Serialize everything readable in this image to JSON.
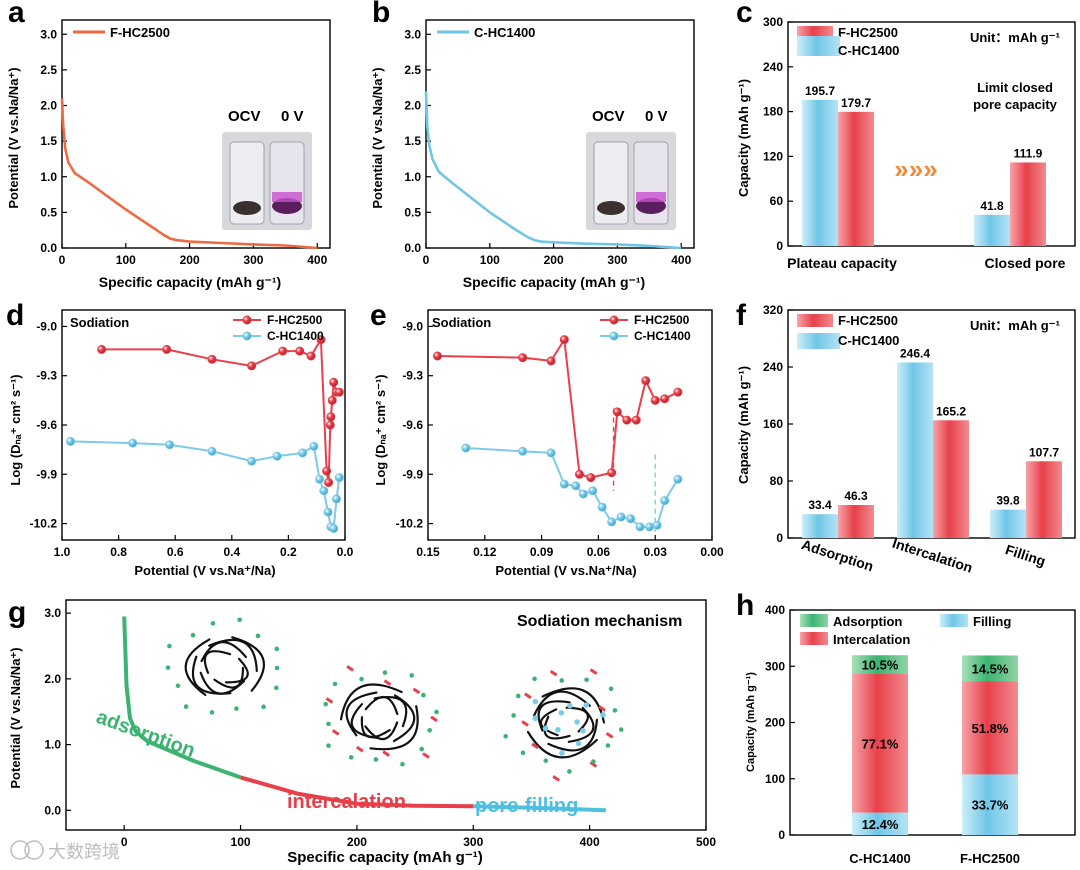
{
  "colors": {
    "red": "#e8404a",
    "blue": "#7ccbe9",
    "orange_line": "#ef6a43",
    "cyan_line": "#6fc6e6",
    "green": "#3cb371",
    "axis": "#000000"
  },
  "panels": {
    "a": {
      "letter": "a",
      "legend": "F-HC2500",
      "vial_left": "OCV",
      "vial_right": "0 V",
      "xlabel": "Specific capacity (mAh g⁻¹)",
      "ylabel": "Potential (V vs.Na/Na⁺)",
      "xticks": [
        "0",
        "100",
        "200",
        "300",
        "400"
      ],
      "yticks": [
        "0.0",
        "0.5",
        "1.0",
        "1.5",
        "2.0",
        "2.5",
        "3.0"
      ]
    },
    "b": {
      "letter": "b",
      "legend": "C-HC1400",
      "vial_left": "OCV",
      "vial_right": "0 V",
      "xlabel": "Specific capacity (mAh g⁻¹)",
      "ylabel": "Potential (V vs.Na/Na⁺)",
      "xticks": [
        "0",
        "100",
        "200",
        "300",
        "400"
      ],
      "yticks": [
        "0.0",
        "0.5",
        "1.0",
        "1.5",
        "2.0",
        "2.5",
        "3.0"
      ]
    },
    "c": {
      "letter": "c",
      "unit": "Unit：mAh g⁻¹",
      "note_line1": "Limit closed",
      "note_line2": "pore capacity",
      "ylabel": "Capacity (mAh g⁻¹)",
      "yticks": [
        "0",
        "60",
        "120",
        "180",
        "240",
        "300"
      ],
      "arrows": "»»»"
    },
    "d": {
      "letter": "d",
      "title": "Sodiation",
      "xlabel": "Potential (V vs.Na⁺/Na)",
      "ylabel": "Log (Dₙₐ⁺ cm² s⁻¹)",
      "xticks": [
        "1.0",
        "0.8",
        "0.6",
        "0.4",
        "0.2",
        "0.0"
      ],
      "yticks": [
        "-9.0",
        "-9.3",
        "-9.6",
        "-9.9",
        "-10.2"
      ]
    },
    "e": {
      "letter": "e",
      "title": "Sodiation",
      "xlabel": "Potential (V vs.Na⁺/Na)",
      "ylabel": "Log (Dₙₐ⁺ cm² s⁻¹)",
      "xticks": [
        "0.15",
        "0.12",
        "0.09",
        "0.06",
        "0.03",
        "0.00"
      ],
      "yticks": [
        "-9.0",
        "-9.3",
        "-9.6",
        "-9.9",
        "-10.2"
      ]
    },
    "f": {
      "letter": "f",
      "unit": "Unit：mAh g⁻¹",
      "ylabel": "Capacity (mAh g⁻¹)",
      "yticks": [
        "0",
        "80",
        "160",
        "240",
        "320"
      ]
    },
    "g": {
      "letter": "g",
      "title": "Sodiation  mechanism",
      "label_adsorption": "adsorption",
      "label_intercalation": "intercalation",
      "label_filling": "pore-filling",
      "xlabel": "Specific capacity (mAh g⁻¹)",
      "ylabel": "Potential (V vs.Na/Na⁺)",
      "xticks": [
        "0",
        "100",
        "200",
        "300",
        "400",
        "500"
      ],
      "yticks": [
        "0.0",
        "1.0",
        "2.0",
        "3.0"
      ]
    },
    "h": {
      "letter": "h",
      "ylabel": "Capacity (mAh g⁻¹)",
      "yticks": [
        "0",
        "100",
        "200",
        "300",
        "400"
      ],
      "legend_adsorption": "Adsorption",
      "legend_filling": "Filling",
      "legend_intercalation": "Intercalation"
    }
  },
  "watermark": "大数跨境",
  "chart_data": [
    {
      "id": "a",
      "type": "line",
      "series": [
        {
          "name": "F-HC2500",
          "x": [
            0,
            2,
            5,
            10,
            20,
            40,
            60,
            80,
            100,
            120,
            140,
            160,
            170,
            180,
            200,
            250,
            300,
            350,
            400
          ],
          "y": [
            2.1,
            1.7,
            1.4,
            1.2,
            1.05,
            0.93,
            0.8,
            0.67,
            0.54,
            0.42,
            0.3,
            0.18,
            0.13,
            0.11,
            0.09,
            0.07,
            0.05,
            0.035,
            0.0
          ]
        }
      ],
      "xlim": [
        0,
        420
      ],
      "ylim": [
        0,
        3.2
      ]
    },
    {
      "id": "b",
      "type": "line",
      "series": [
        {
          "name": "C-HC1400",
          "x": [
            0,
            2,
            5,
            10,
            20,
            40,
            60,
            80,
            100,
            120,
            140,
            160,
            170,
            180,
            200,
            250,
            300,
            350,
            400
          ],
          "y": [
            2.2,
            1.7,
            1.45,
            1.25,
            1.07,
            0.92,
            0.78,
            0.64,
            0.5,
            0.38,
            0.26,
            0.15,
            0.11,
            0.09,
            0.08,
            0.06,
            0.05,
            0.03,
            0.0
          ]
        }
      ],
      "xlim": [
        0,
        420
      ],
      "ylim": [
        0,
        3.2
      ]
    },
    {
      "id": "c",
      "type": "bar",
      "categories": [
        "Plateau capacity",
        "Closed pore"
      ],
      "series": [
        {
          "name": "F-HC2500",
          "values": [
            179.7,
            111.9
          ]
        },
        {
          "name": "C-HC1400",
          "values": [
            195.7,
            41.8
          ]
        }
      ],
      "ylim": [
        0,
        300
      ]
    },
    {
      "id": "d",
      "type": "scatter",
      "xlim": [
        1.0,
        0.0
      ],
      "ylim": [
        -10.3,
        -8.9
      ],
      "series": [
        {
          "name": "F-HC2500",
          "x": [
            0.86,
            0.63,
            0.47,
            0.33,
            0.22,
            0.16,
            0.12,
            0.085,
            0.065,
            0.058,
            0.052,
            0.05,
            0.045,
            0.04,
            0.03,
            0.02
          ],
          "y": [
            -9.14,
            -9.14,
            -9.2,
            -9.24,
            -9.15,
            -9.15,
            -9.18,
            -9.08,
            -9.88,
            -9.95,
            -9.6,
            -9.55,
            -9.45,
            -9.34,
            -9.4,
            -9.4
          ]
        },
        {
          "name": "C-HC1400",
          "x": [
            0.97,
            0.75,
            0.62,
            0.47,
            0.33,
            0.24,
            0.15,
            0.11,
            0.09,
            0.075,
            0.06,
            0.05,
            0.04,
            0.03,
            0.02
          ],
          "y": [
            -9.7,
            -9.71,
            -9.72,
            -9.76,
            -9.82,
            -9.79,
            -9.77,
            -9.73,
            -9.93,
            -10.0,
            -10.13,
            -10.22,
            -10.23,
            -10.05,
            -9.92
          ]
        }
      ]
    },
    {
      "id": "e",
      "type": "scatter",
      "xlim": [
        0.15,
        0.0
      ],
      "ylim": [
        -10.3,
        -8.9
      ],
      "series": [
        {
          "name": "F-HC2500",
          "x": [
            0.145,
            0.1,
            0.085,
            0.078,
            0.07,
            0.064,
            0.053,
            0.05,
            0.045,
            0.04,
            0.035,
            0.03,
            0.025,
            0.018
          ],
          "y": [
            -9.18,
            -9.19,
            -9.21,
            -9.08,
            -9.9,
            -9.92,
            -9.89,
            -9.52,
            -9.57,
            -9.57,
            -9.33,
            -9.45,
            -9.44,
            -9.4
          ]
        },
        {
          "name": "C-HC1400",
          "x": [
            0.13,
            0.1,
            0.085,
            0.078,
            0.072,
            0.068,
            0.063,
            0.058,
            0.053,
            0.048,
            0.043,
            0.038,
            0.033,
            0.029,
            0.025,
            0.018
          ],
          "y": [
            -9.74,
            -9.76,
            -9.77,
            -9.96,
            -9.97,
            -10.02,
            -10.0,
            -10.1,
            -10.19,
            -10.16,
            -10.17,
            -10.22,
            -10.22,
            -10.21,
            -10.06,
            -9.93
          ]
        }
      ]
    },
    {
      "id": "f",
      "type": "bar",
      "categories": [
        "Adsorption",
        "Intercalation",
        "Filling"
      ],
      "series": [
        {
          "name": "F-HC2500",
          "values": [
            46.3,
            165.2,
            107.7
          ]
        },
        {
          "name": "C-HC1400",
          "values": [
            33.4,
            246.4,
            39.8
          ]
        }
      ],
      "ylim": [
        0,
        320
      ]
    },
    {
      "id": "g",
      "type": "line",
      "xlim": [
        -50,
        500
      ],
      "ylim": [
        -0.3,
        3.2
      ],
      "series": [
        {
          "name": "",
          "x": [
            0,
            2,
            5,
            10,
            20,
            40,
            60,
            100,
            150,
            200,
            250,
            300,
            350,
            414
          ],
          "y": [
            2.95,
            1.9,
            1.4,
            1.2,
            1.05,
            0.9,
            0.75,
            0.5,
            0.25,
            0.1,
            0.07,
            0.06,
            0.04,
            0.0
          ]
        }
      ],
      "segments": [
        {
          "label": "adsorption",
          "x_end": 100
        },
        {
          "label": "intercalation",
          "x_end": 300
        },
        {
          "label": "pore-filling",
          "x_end": 414
        }
      ]
    },
    {
      "id": "h",
      "type": "bar",
      "stacked": true,
      "categories": [
        "C-HC1400",
        "F-HC2500"
      ],
      "ylim": [
        0,
        400
      ],
      "series": [
        {
          "name": "Filling",
          "values": [
            39.8,
            107.7
          ],
          "labels": [
            "12.4%",
            "33.7%"
          ]
        },
        {
          "name": "Intercalation",
          "values": [
            246.4,
            165.2
          ],
          "labels": [
            "77.1%",
            "51.8%"
          ]
        },
        {
          "name": "Adsorption",
          "values": [
            33.4,
            46.3
          ],
          "labels": [
            "10.5%",
            "14.5%"
          ]
        }
      ]
    }
  ]
}
